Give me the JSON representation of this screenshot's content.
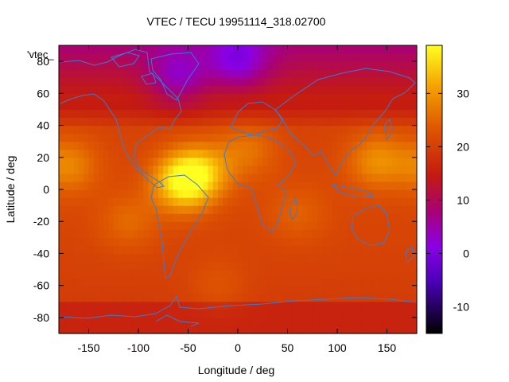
{
  "chart_data": {
    "type": "heatmap",
    "title": "VTEC / TECU 19951114_318.02700",
    "key_title": "'vtec_",
    "xlabel": "Longitude / deg",
    "ylabel": "Latitude / deg",
    "xlim": [
      -180,
      180
    ],
    "ylim": [
      -90,
      90
    ],
    "xticks": [
      -150,
      -100,
      -50,
      0,
      50,
      100,
      150
    ],
    "yticks": [
      -80,
      -60,
      -40,
      -20,
      0,
      20,
      40,
      60,
      80
    ],
    "colorbar": {
      "range": [
        -15,
        39
      ],
      "ticks": [
        -10,
        0,
        10,
        20,
        30
      ],
      "palette": "gnuplot black-purple-red-orange-yellow"
    },
    "grid_resolution_deg": 5,
    "overlay": "coastlines",
    "features": [
      {
        "lon": -55,
        "lat": 5,
        "vtec": 38
      },
      {
        "lon": -35,
        "lat": 12,
        "vtec": 29
      },
      {
        "lon": 140,
        "lat": 18,
        "vtec": 28
      },
      {
        "lon": -170,
        "lat": 15,
        "vtec": 27
      },
      {
        "lon": 10,
        "lat": 25,
        "vtec": 25
      },
      {
        "lon": -110,
        "lat": -20,
        "vtec": 24
      },
      {
        "lon": 60,
        "lat": -15,
        "vtec": 23
      },
      {
        "lon": -20,
        "lat": -60,
        "vtec": 22
      },
      {
        "lon": 120,
        "lat": -70,
        "vtec": 19
      },
      {
        "lon": 0,
        "lat": 80,
        "vtec": 8
      },
      {
        "lon": -60,
        "lat": 70,
        "vtec": 9
      }
    ]
  }
}
